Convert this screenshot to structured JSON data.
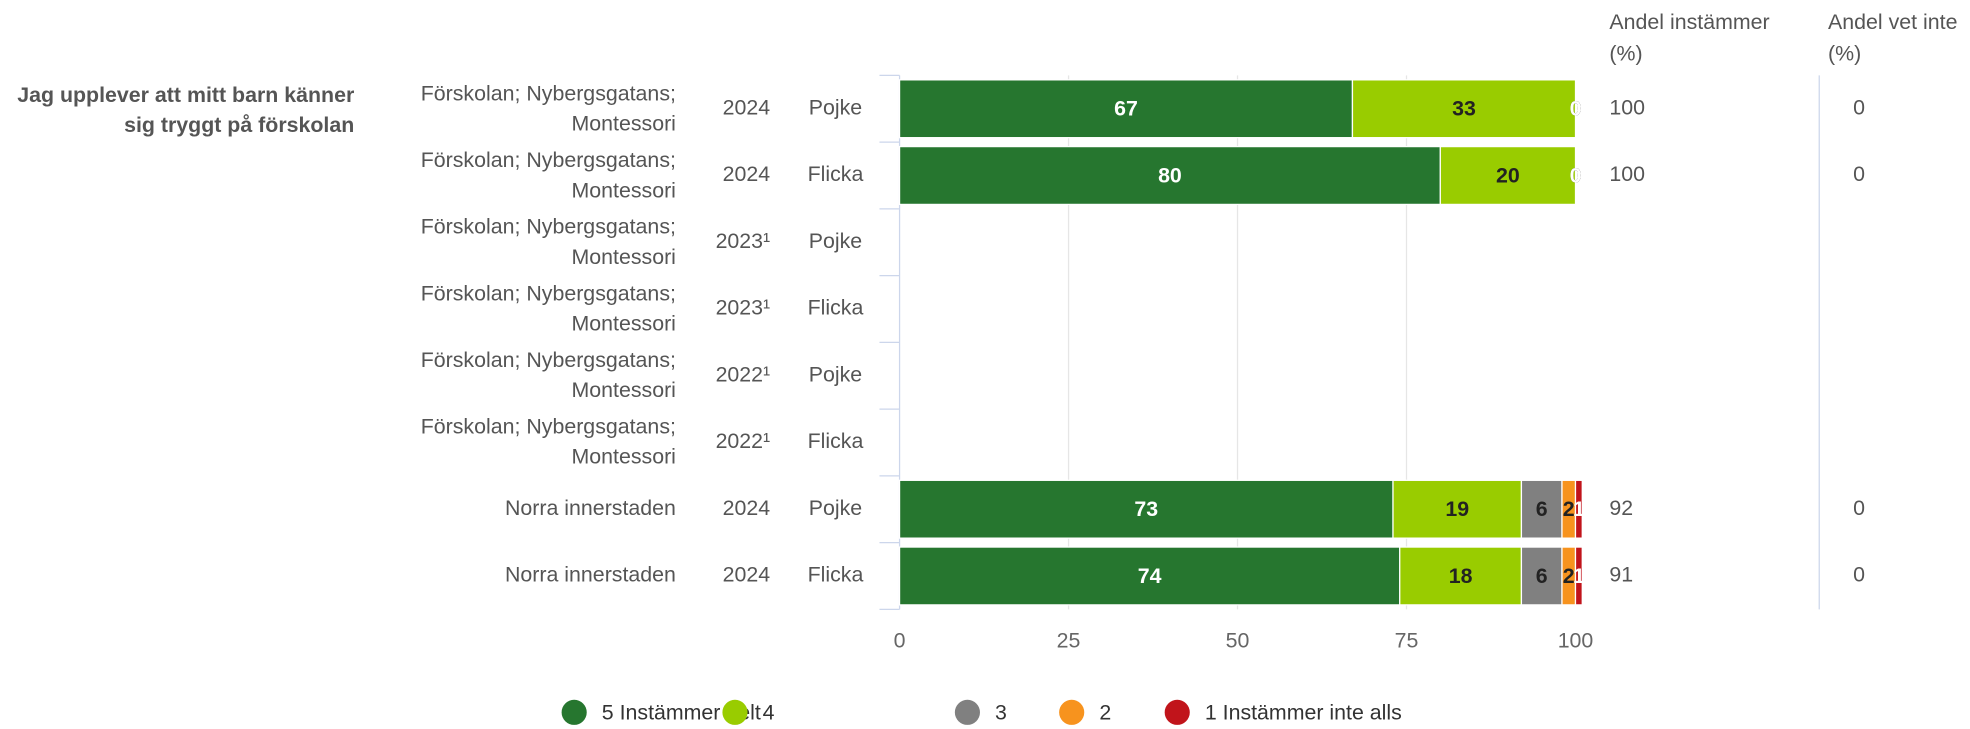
{
  "chart_data": {
    "type": "bar",
    "orientation": "horizontal",
    "stacked": true,
    "question": "Jag upplever att mitt barn känner sig tryggt på förskolan",
    "rows": [
      {
        "unit": "Förskolan; Nybergsgatans; Montessori",
        "year": "2024",
        "group": "Pojke"
      },
      {
        "unit": "Förskolan; Nybergsgatans; Montessori",
        "year": "2024",
        "group": "Flicka"
      },
      {
        "unit": "Förskolan; Nybergsgatans; Montessori",
        "year": "2023¹",
        "group": "Pojke"
      },
      {
        "unit": "Förskolan; Nybergsgatans; Montessori",
        "year": "2023¹",
        "group": "Flicka"
      },
      {
        "unit": "Förskolan; Nybergsgatans; Montessori",
        "year": "2022¹",
        "group": "Pojke"
      },
      {
        "unit": "Förskolan; Nybergsgatans; Montessori",
        "year": "2022¹",
        "group": "Flicka"
      },
      {
        "unit": "Norra innerstaden",
        "year": "2024",
        "group": "Pojke"
      },
      {
        "unit": "Norra innerstaden",
        "year": "2024",
        "group": "Flicka"
      }
    ],
    "series": [
      {
        "name": "5 Instämmer helt",
        "color": "#26762f",
        "label_color": "#ffffff",
        "values": [
          67,
          80,
          null,
          null,
          null,
          null,
          73,
          74
        ]
      },
      {
        "name": "4",
        "color": "#99cc00",
        "label_color": "#222222",
        "values": [
          33,
          20,
          null,
          null,
          null,
          null,
          19,
          18
        ]
      },
      {
        "name": "3",
        "color": "#808080",
        "label_color": "#222222",
        "values": [
          0,
          0,
          null,
          null,
          null,
          null,
          6,
          6
        ]
      },
      {
        "name": "2",
        "color": "#f7931e",
        "label_color": "#222222",
        "values": [
          0,
          0,
          null,
          null,
          null,
          null,
          2,
          2
        ]
      },
      {
        "name": "1 Instämmer inte alls",
        "color": "#c1141b",
        "label_color": "#ffffff",
        "values": [
          0,
          0,
          null,
          null,
          null,
          null,
          1,
          1
        ]
      }
    ],
    "xlim": [
      0,
      100
    ],
    "xticks": [
      0,
      25,
      50,
      75,
      100
    ],
    "grid": true,
    "columns": [
      {
        "title": "Andel instämmer (%)",
        "values": [
          100,
          100,
          null,
          null,
          null,
          null,
          92,
          91
        ]
      },
      {
        "title": "Andel vet inte (%)",
        "values": [
          0,
          0,
          null,
          null,
          null,
          null,
          0,
          0
        ]
      }
    ],
    "legend": "bottom"
  }
}
